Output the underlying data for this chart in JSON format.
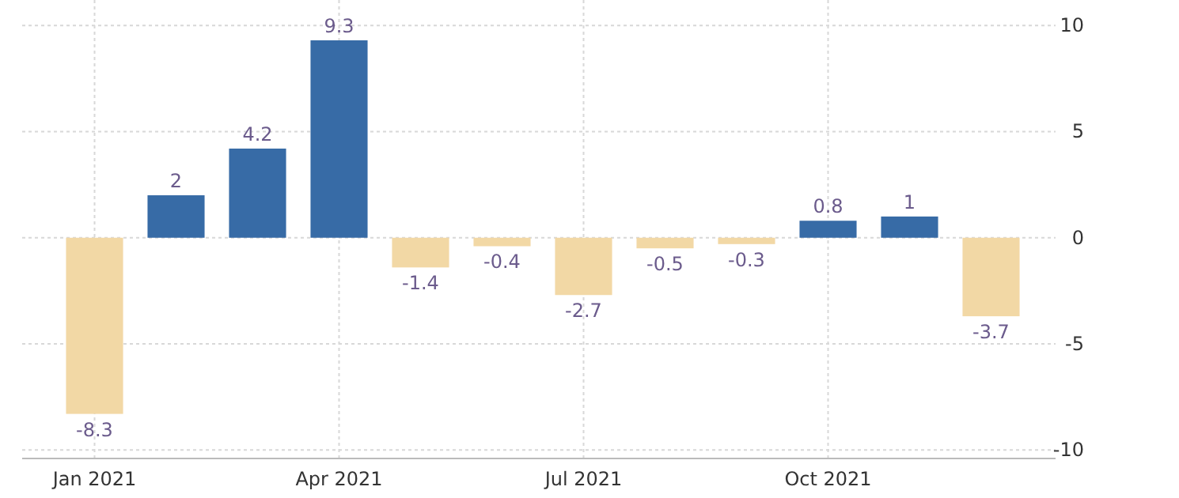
{
  "chart_data": {
    "type": "bar",
    "categories": [
      "Jan 2021",
      null,
      null,
      "Apr 2021",
      null,
      null,
      "Jul 2021",
      null,
      null,
      "Oct 2021",
      null,
      null
    ],
    "values": [
      -8.3,
      2,
      4.2,
      9.3,
      -1.4,
      -0.4,
      -2.7,
      -0.5,
      -0.3,
      0.8,
      1,
      -3.7
    ],
    "colors": [
      "#f2d8a5",
      "#376ba6",
      "#376ba6",
      "#376ba6",
      "#f2d8a5",
      "#f2d8a5",
      "#f2d8a5",
      "#f2d8a5",
      "#f2d8a5",
      "#376ba6",
      "#376ba6",
      "#f2d8a5"
    ],
    "ylim": [
      -10.4,
      11.2
    ],
    "yticks": [
      -10,
      -5,
      0,
      5,
      10
    ],
    "grid": true,
    "data_labels": true
  }
}
